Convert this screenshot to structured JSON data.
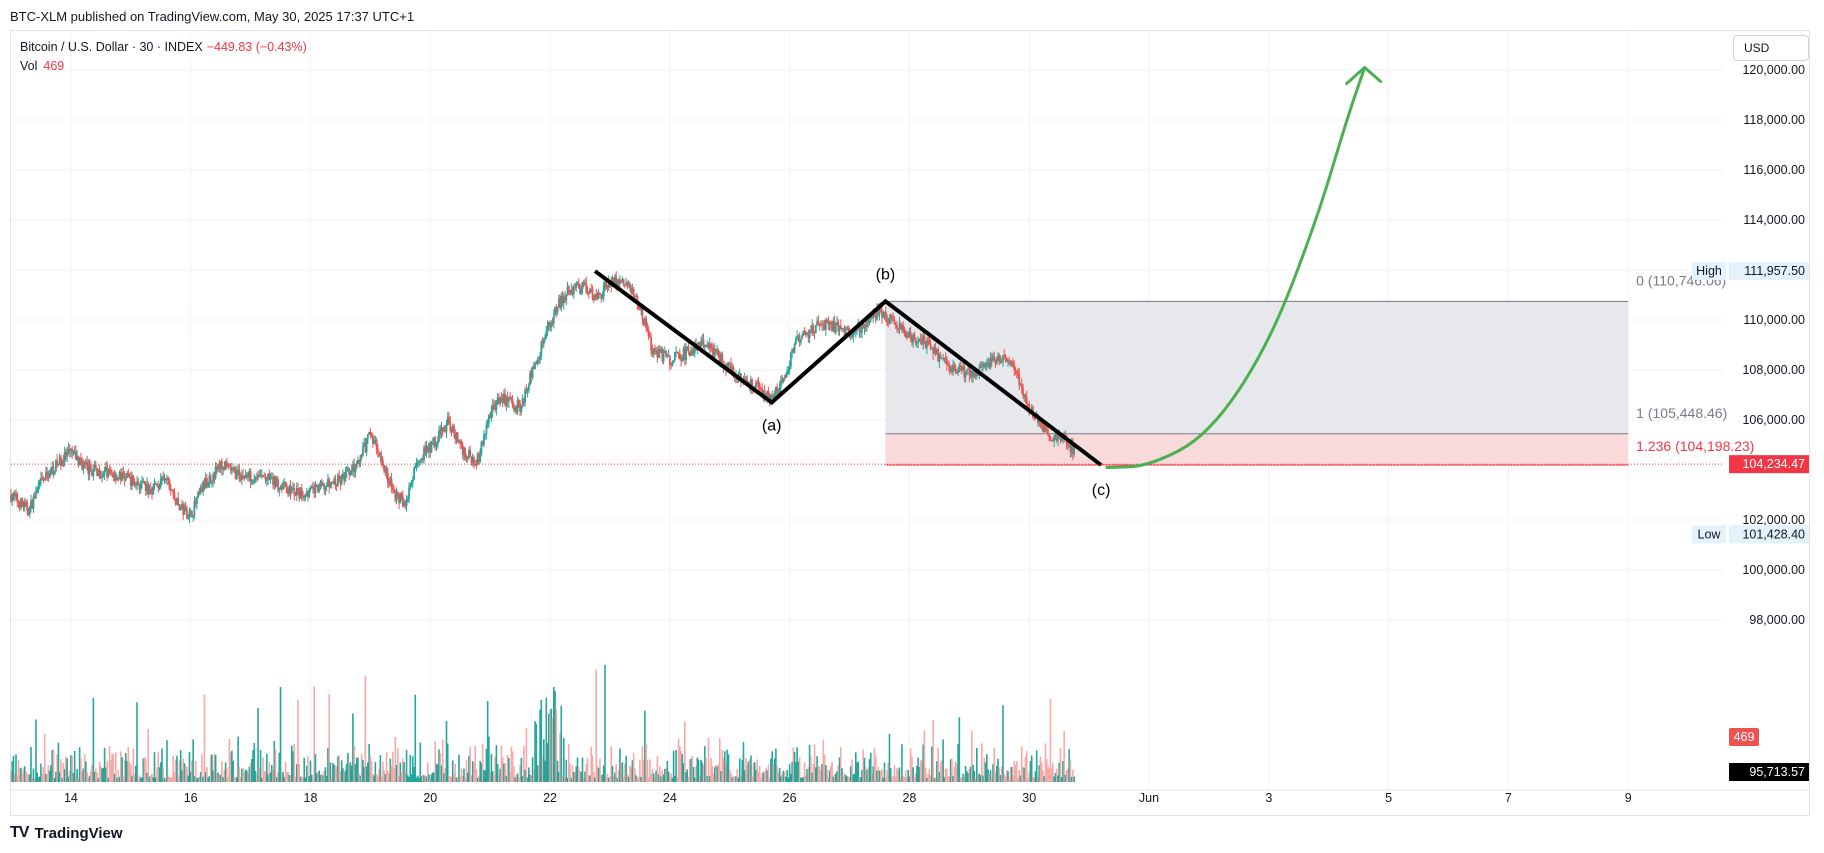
{
  "header": {
    "published": "BTC-XLM published on TradingView.com, May 30, 2025 17:37 UTC+1"
  },
  "legend": {
    "symbol": "Bitcoin / U.S. Dollar · 30 · INDEX",
    "change": "−449.83 (−0.43%)",
    "vol_label": "Vol",
    "vol_value": "469"
  },
  "currency_button": "USD",
  "branding": {
    "logo": "TV",
    "name": "TradingView"
  },
  "colors": {
    "up": "#26a69a",
    "down": "#ef5350",
    "vol_up": "#26a69a",
    "vol_down": "#f7a9a7",
    "wave": "#000000",
    "projection": "#4caf50",
    "fib_zone_gray": "#e3e4e7",
    "fib_zone_red": "#f7d6d6",
    "fib_red_text": "#f23645",
    "fib_gray_text": "#787b86",
    "grid": "#f0f3fa",
    "axis_text": "#131722"
  },
  "chart_data": {
    "type": "candlestick",
    "title": "Bitcoin / U.S. Dollar · 30 · INDEX",
    "interval": "30",
    "price_axis": {
      "ticks": [
        "120,000.00",
        "118,000.00",
        "116,000.00",
        "114,000.00",
        "112,000.00",
        "110,000.00",
        "108,000.00",
        "106,000.00",
        "102,000.00",
        "100,000.00",
        "98,000.00"
      ],
      "tick_values": [
        120000,
        118000,
        116000,
        114000,
        112000,
        110000,
        108000,
        106000,
        102000,
        100000,
        98000
      ],
      "range": [
        95500,
        122000
      ]
    },
    "time_axis": {
      "ticks": [
        "14",
        "16",
        "18",
        "20",
        "22",
        "24",
        "26",
        "28",
        "30",
        "Jun",
        "3",
        "5",
        "7",
        "9"
      ],
      "tick_days": [
        14,
        16,
        18,
        20,
        22,
        24,
        26,
        28,
        30,
        32,
        34,
        36,
        38,
        40
      ],
      "range_days": [
        13,
        41.6
      ]
    },
    "price_path": [
      [
        13.0,
        103000
      ],
      [
        13.3,
        102400
      ],
      [
        13.5,
        103500
      ],
      [
        13.8,
        104300
      ],
      [
        14.0,
        104700
      ],
      [
        14.3,
        104000
      ],
      [
        14.6,
        103900
      ],
      [
        15.0,
        103600
      ],
      [
        15.3,
        103200
      ],
      [
        15.6,
        103600
      ],
      [
        15.8,
        102500
      ],
      [
        16.0,
        102200
      ],
      [
        16.2,
        103300
      ],
      [
        16.5,
        104200
      ],
      [
        16.8,
        103800
      ],
      [
        17.2,
        103700
      ],
      [
        17.5,
        103400
      ],
      [
        17.8,
        103000
      ],
      [
        18.2,
        103300
      ],
      [
        18.5,
        103600
      ],
      [
        18.8,
        104200
      ],
      [
        19.0,
        105500
      ],
      [
        19.2,
        104300
      ],
      [
        19.4,
        103000
      ],
      [
        19.6,
        102700
      ],
      [
        19.8,
        104500
      ],
      [
        20.0,
        104900
      ],
      [
        20.3,
        105900
      ],
      [
        20.6,
        104600
      ],
      [
        20.8,
        104400
      ],
      [
        21.0,
        106300
      ],
      [
        21.2,
        106900
      ],
      [
        21.5,
        106500
      ],
      [
        21.7,
        107900
      ],
      [
        21.9,
        109200
      ],
      [
        22.1,
        110500
      ],
      [
        22.3,
        111200
      ],
      [
        22.6,
        111300
      ],
      [
        22.8,
        110900
      ],
      [
        23.0,
        111600
      ],
      [
        23.3,
        111400
      ],
      [
        23.5,
        110600
      ],
      [
        23.7,
        108900
      ],
      [
        24.0,
        108400
      ],
      [
        24.3,
        108700
      ],
      [
        24.6,
        109100
      ],
      [
        24.9,
        108300
      ],
      [
        25.2,
        107700
      ],
      [
        25.5,
        107200
      ],
      [
        25.7,
        106900
      ],
      [
        25.9,
        107500
      ],
      [
        26.1,
        109100
      ],
      [
        26.4,
        109700
      ],
      [
        26.7,
        109800
      ],
      [
        27.0,
        109500
      ],
      [
        27.3,
        109800
      ],
      [
        27.5,
        110400
      ],
      [
        27.7,
        109900
      ],
      [
        28.0,
        109300
      ],
      [
        28.3,
        109100
      ],
      [
        28.6,
        108200
      ],
      [
        28.8,
        108000
      ],
      [
        29.1,
        107900
      ],
      [
        29.4,
        108400
      ],
      [
        29.6,
        108600
      ],
      [
        29.8,
        107800
      ],
      [
        30.0,
        106500
      ],
      [
        30.2,
        105800
      ],
      [
        30.4,
        105200
      ],
      [
        30.6,
        105400
      ],
      [
        30.7,
        104800
      ]
    ],
    "volume_axis_note": "volume bars along bottom pane",
    "annotations": {
      "waves": [
        {
          "label": "(a)",
          "day": 25.7,
          "price": 106700
        },
        {
          "label": "(b)",
          "day": 27.6,
          "price": 110746
        },
        {
          "label": "(c)",
          "day": 31.2,
          "price": 104198
        }
      ],
      "wave_line": [
        [
          22.75,
          111957
        ],
        [
          25.7,
          106700
        ],
        [
          27.6,
          110746
        ],
        [
          31.2,
          104198
        ]
      ],
      "fib_levels": [
        {
          "label": "0 (110,746.06)",
          "value": 110746.06
        },
        {
          "label": "1 (105,448.46)",
          "value": 105448.46
        },
        {
          "label": "1.236 (104,198.23)",
          "value": 104198.23
        }
      ],
      "fib_box_days": [
        27.6,
        40.0
      ],
      "projection_curve": [
        [
          31.3,
          104100
        ],
        [
          32.0,
          104150
        ],
        [
          33.0,
          105400
        ],
        [
          34.0,
          109000
        ],
        [
          34.8,
          114000
        ],
        [
          35.3,
          118000
        ],
        [
          35.6,
          120100
        ]
      ]
    },
    "price_labels": {
      "high_label": "High",
      "high_value": "111,957.50",
      "high_price": 111957.5,
      "last_value": "104,234.47",
      "last_price": 104234.47,
      "low_label": "Low",
      "low_value": "101,428.40",
      "low_price": 101428.4,
      "vol_value": "469",
      "bottom_value": "95,713.57"
    }
  }
}
